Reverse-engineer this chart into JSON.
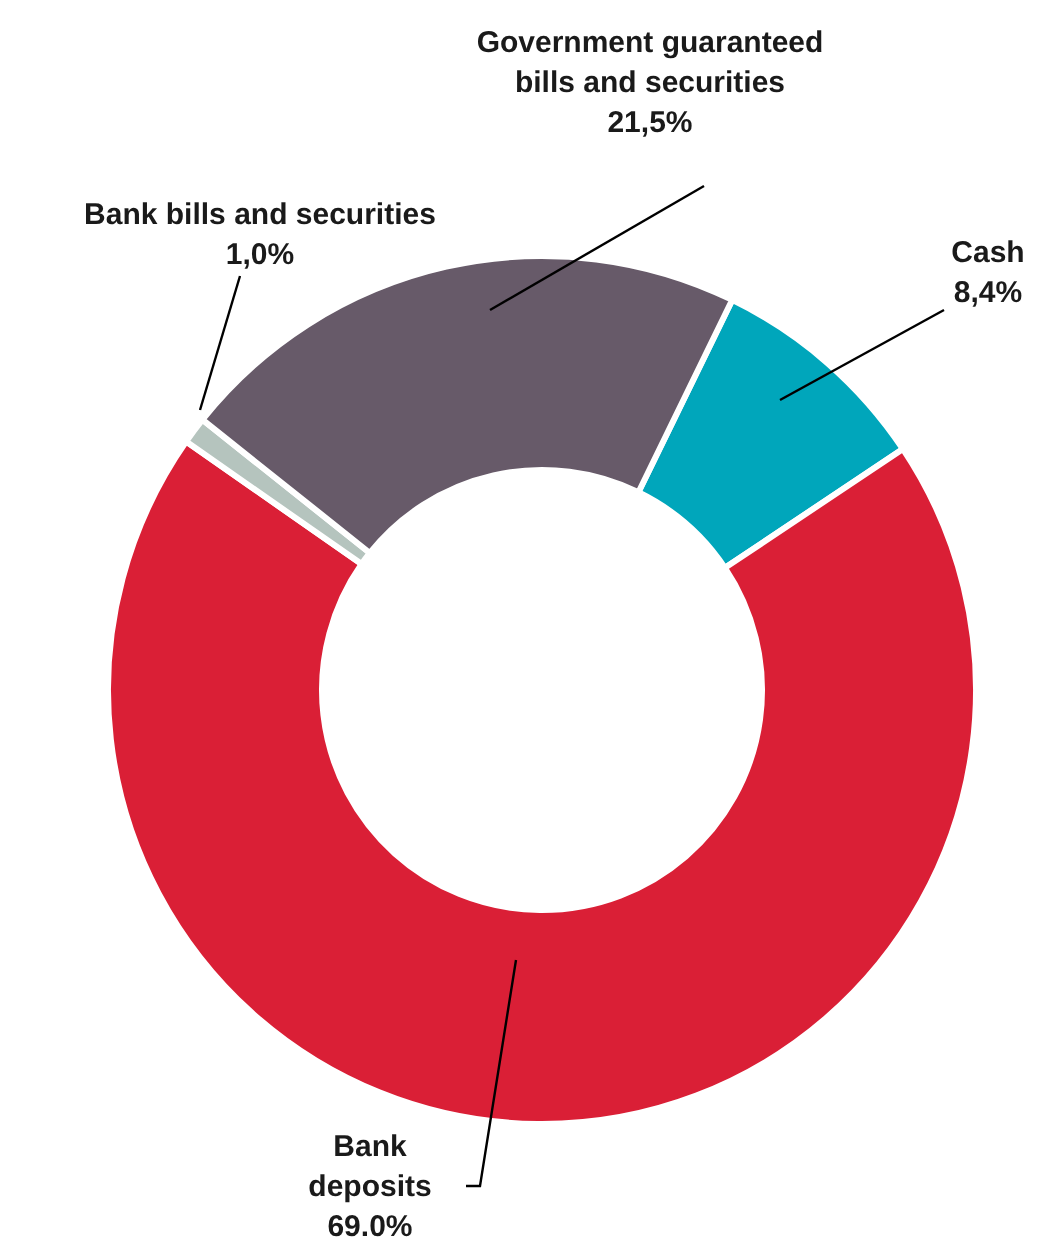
{
  "chart_data": {
    "type": "donut",
    "categories": [
      "Cash",
      "Bank deposits",
      "Bank bills and securities",
      "Government guaranteed bills and securities"
    ],
    "values": [
      8.4,
      69.0,
      1.0,
      21.5
    ],
    "value_labels": [
      "8,4%",
      "69.0%",
      "1,0%",
      "21,5%"
    ],
    "colors": [
      "#00a6bb",
      "#da1f36",
      "#b5c4be",
      "#675a69"
    ]
  }
}
